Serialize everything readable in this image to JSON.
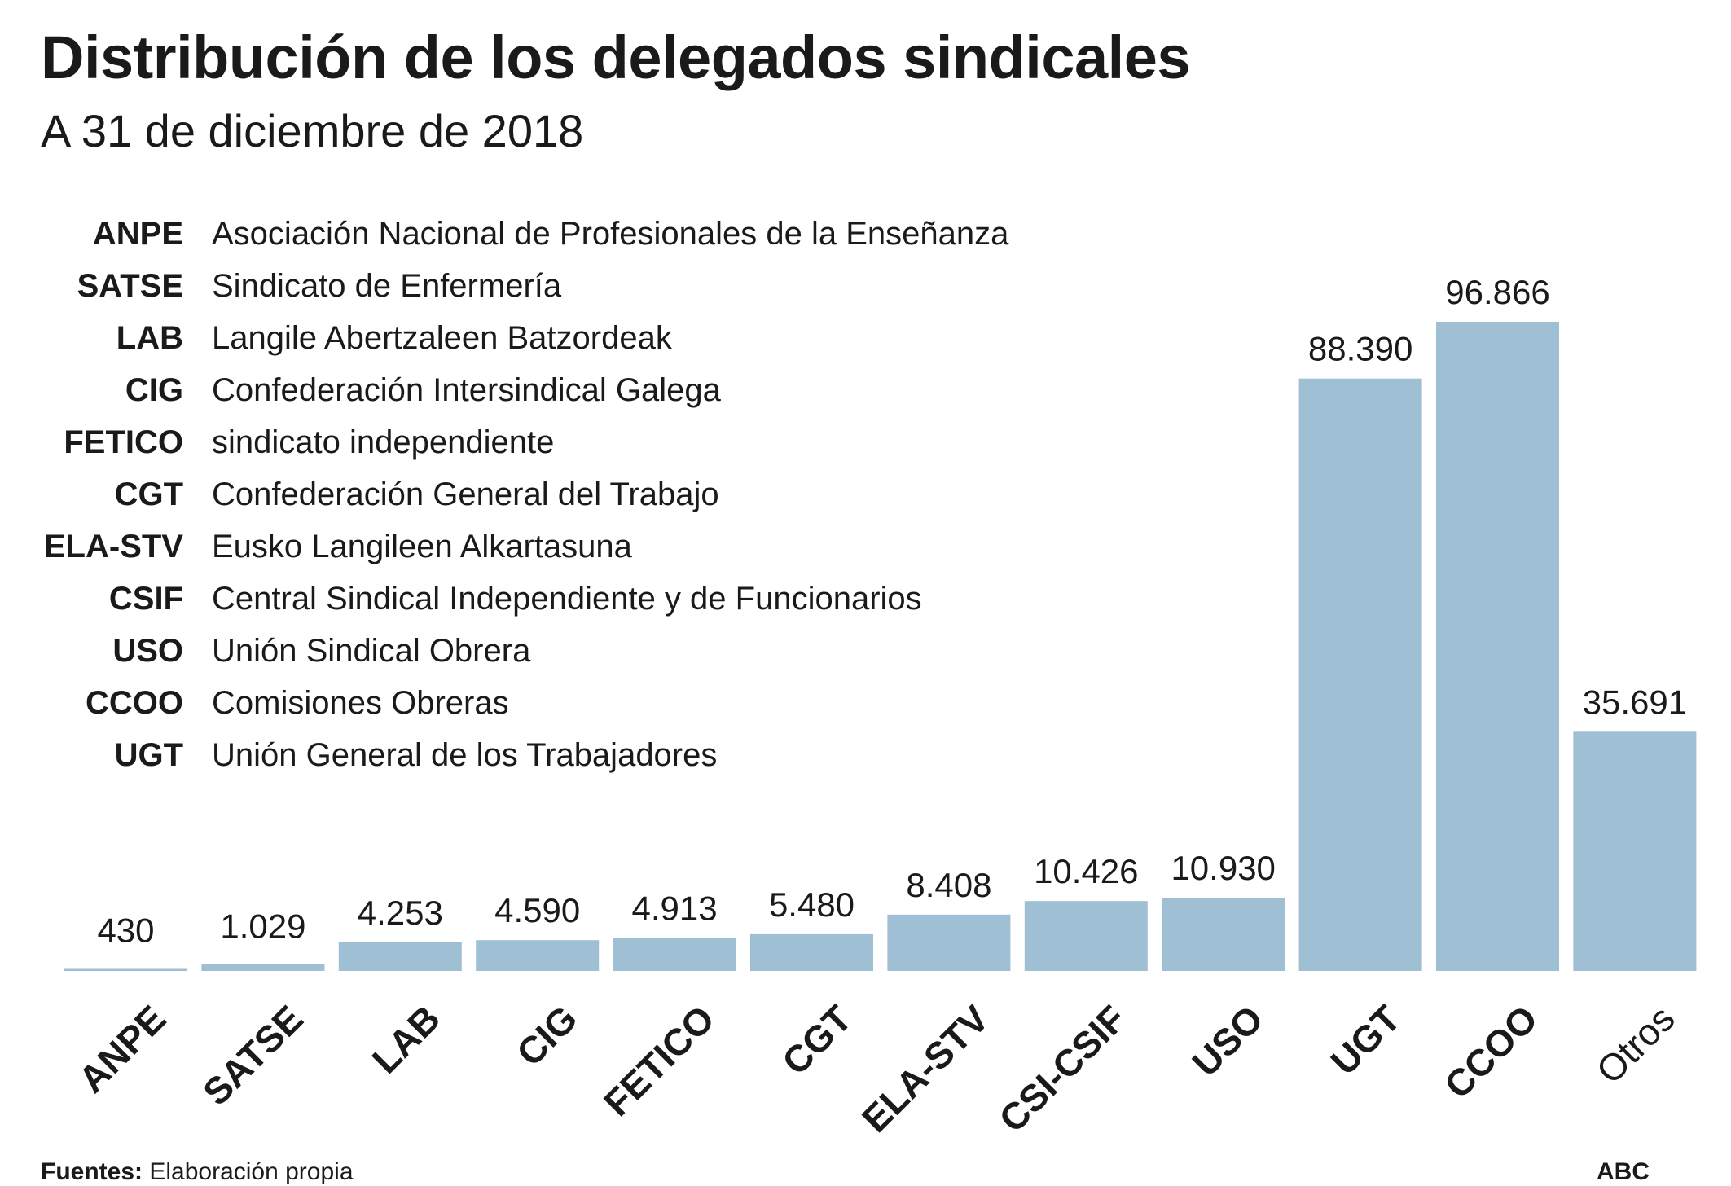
{
  "header": {
    "title": "Distribución de los delegados sindicales",
    "subtitle": "A 31 de diciembre de 2018"
  },
  "legend": [
    {
      "abbr": "ANPE",
      "name": "Asociación Nacional de Profesionales de la Enseñanza"
    },
    {
      "abbr": "SATSE",
      "name": "Sindicato de Enfermería"
    },
    {
      "abbr": "LAB",
      "name": "Langile Abertzaleen Batzordeak"
    },
    {
      "abbr": "CIG",
      "name": "Confederación Intersindical Galega"
    },
    {
      "abbr": "FETICO",
      "name": "sindicato independiente"
    },
    {
      "abbr": "CGT",
      "name": "Confederación General del Trabajo"
    },
    {
      "abbr": "ELA-STV",
      "name": "Eusko Langileen Alkartasuna"
    },
    {
      "abbr": "CSIF",
      "name": "Central Sindical Independiente y de Funcionarios"
    },
    {
      "abbr": "USO",
      "name": "Unión Sindical Obrera"
    },
    {
      "abbr": "CCOO",
      "name": "Comisiones Obreras"
    },
    {
      "abbr": "UGT",
      "name": "Unión General de los Trabajadores"
    }
  ],
  "chart_data": {
    "type": "bar",
    "categories": [
      "ANPE",
      "SATSE",
      "LAB",
      "CIG",
      "FETICO",
      "CGT",
      "ELA-STV",
      "CSI-CSIF",
      "USO",
      "UGT",
      "CCOO",
      "Otros"
    ],
    "values": [
      430,
      1029,
      4253,
      4590,
      4913,
      5480,
      8408,
      10426,
      10930,
      88390,
      96866,
      35691
    ],
    "value_labels": [
      "430",
      "1.029",
      "4.253",
      "4.590",
      "4.913",
      "5.480",
      "8.408",
      "10.426",
      "10.930",
      "88.390",
      "96.866",
      "35.691"
    ],
    "bold_categories": [
      true,
      true,
      true,
      true,
      true,
      true,
      true,
      true,
      true,
      true,
      true,
      false
    ],
    "title": "Distribución de los delegados sindicales",
    "subtitle": "A 31 de diciembre de 2018",
    "xlabel": "",
    "ylabel": "",
    "ylim": [
      0,
      96866
    ],
    "grid": false,
    "bar_color": "#9fbfd5"
  },
  "footer": {
    "source_label": "Fuentes:",
    "source_text": " Elaboración propia",
    "brand": "ABC"
  },
  "colors": {
    "bar": "#9fbfd5",
    "text": "#1a1a1a",
    "background": "#ffffff"
  }
}
